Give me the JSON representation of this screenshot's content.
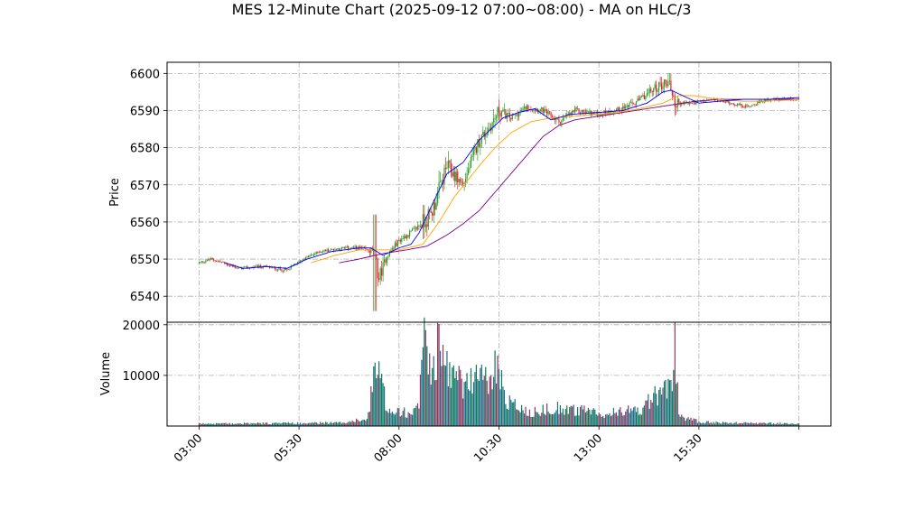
{
  "chart_data": {
    "type": "candlestick",
    "title": "MES 12-Minute Chart (2025-09-12 07:00~08:00) - MA on HLC/3",
    "price_panel": {
      "ylabel": "Price",
      "ylim": [
        6533,
        6603
      ],
      "yticks": [
        6540,
        6550,
        6560,
        6570,
        6580,
        6590,
        6600
      ]
    },
    "volume_panel": {
      "ylabel": "Volume",
      "ylim": [
        0,
        20500
      ],
      "yticks": [
        10000,
        20000
      ],
      "bar_colors": [
        "#1f6f8b",
        "#0b7a57",
        "#8b3a62"
      ]
    },
    "xticks": [
      {
        "label": "03:00",
        "hours": 3.0
      },
      {
        "label": "05:30",
        "hours": 5.5
      },
      {
        "label": "08:00",
        "hours": 8.0
      },
      {
        "label": "10:30",
        "hours": 10.5
      },
      {
        "label": "13:00",
        "hours": 13.0
      },
      {
        "label": "15:30",
        "hours": 15.5
      }
    ],
    "xlim_hours": [
      2.2,
      18.8
    ],
    "grid": true,
    "colors": {
      "up": "#2ca02c",
      "down": "#d62728",
      "ma_fast": "#0000ff",
      "ma_mid": "#ffa500",
      "ma_slow": "#800080"
    },
    "price_anchors": [
      [
        3.0,
        6549
      ],
      [
        3.3,
        6550
      ],
      [
        3.6,
        6549
      ],
      [
        4.0,
        6547.5
      ],
      [
        4.6,
        6548
      ],
      [
        5.2,
        6547
      ],
      [
        5.6,
        6550
      ],
      [
        6.0,
        6552
      ],
      [
        6.6,
        6553
      ],
      [
        7.0,
        6553
      ],
      [
        7.35,
        6552
      ],
      [
        7.5,
        6545
      ],
      [
        7.7,
        6551
      ],
      [
        8.0,
        6555
      ],
      [
        8.4,
        6558
      ],
      [
        8.8,
        6562
      ],
      [
        9.2,
        6575
      ],
      [
        9.6,
        6570
      ],
      [
        10.0,
        6582
      ],
      [
        10.3,
        6586
      ],
      [
        10.5,
        6590
      ],
      [
        10.8,
        6588
      ],
      [
        11.2,
        6591
      ],
      [
        11.6,
        6590
      ],
      [
        12.0,
        6587
      ],
      [
        12.4,
        6590
      ],
      [
        13.0,
        6589
      ],
      [
        13.4,
        6590
      ],
      [
        13.9,
        6592
      ],
      [
        14.4,
        6596
      ],
      [
        14.75,
        6598
      ],
      [
        14.9,
        6592
      ],
      [
        15.3,
        6592
      ],
      [
        15.9,
        6593
      ],
      [
        16.3,
        6592
      ],
      [
        16.7,
        6591
      ],
      [
        17.2,
        6593
      ],
      [
        17.6,
        6593
      ],
      [
        18.0,
        6593
      ]
    ],
    "volume_anchors": [
      [
        3.0,
        500
      ],
      [
        6.5,
        700
      ],
      [
        7.2,
        1500
      ],
      [
        7.45,
        14000
      ],
      [
        7.7,
        4000
      ],
      [
        8.2,
        3000
      ],
      [
        8.5,
        5000
      ],
      [
        8.6,
        20000
      ],
      [
        8.8,
        13000
      ],
      [
        9.0,
        17000
      ],
      [
        9.3,
        12000
      ],
      [
        9.6,
        9000
      ],
      [
        10.0,
        11000
      ],
      [
        10.3,
        9000
      ],
      [
        10.4,
        13500
      ],
      [
        10.7,
        6000
      ],
      [
        11.2,
        3000
      ],
      [
        12.0,
        4000
      ],
      [
        13.0,
        2800
      ],
      [
        14.0,
        3500
      ],
      [
        14.6,
        8000
      ],
      [
        14.8,
        10000
      ],
      [
        14.9,
        17000
      ],
      [
        15.0,
        2000
      ],
      [
        15.6,
        800
      ],
      [
        18.0,
        500
      ]
    ],
    "ma_fast_anchors": [
      [
        3.65,
        6549
      ],
      [
        4.1,
        6547.5
      ],
      [
        4.7,
        6548
      ],
      [
        5.2,
        6547.5
      ],
      [
        5.7,
        6550
      ],
      [
        6.3,
        6552
      ],
      [
        7.0,
        6553
      ],
      [
        7.3,
        6553
      ],
      [
        7.6,
        6551
      ],
      [
        8.0,
        6553
      ],
      [
        8.3,
        6554
      ],
      [
        8.5,
        6557
      ],
      [
        8.8,
        6564
      ],
      [
        9.2,
        6573
      ],
      [
        9.6,
        6576
      ],
      [
        10.0,
        6582
      ],
      [
        10.3,
        6585
      ],
      [
        10.6,
        6588
      ],
      [
        11.0,
        6589.5
      ],
      [
        11.4,
        6590.5
      ],
      [
        11.8,
        6587.5
      ],
      [
        12.3,
        6589
      ],
      [
        13.0,
        6589.5
      ],
      [
        13.6,
        6590
      ],
      [
        14.2,
        6592
      ],
      [
        14.6,
        6595
      ],
      [
        14.8,
        6595.5
      ],
      [
        15.1,
        6594
      ],
      [
        15.5,
        6592
      ],
      [
        16.0,
        6592.5
      ],
      [
        16.6,
        6593
      ],
      [
        17.2,
        6593
      ],
      [
        18.0,
        6593.5
      ]
    ],
    "ma_mid_anchors": [
      [
        5.8,
        6549
      ],
      [
        6.4,
        6551
      ],
      [
        7.0,
        6552.5
      ],
      [
        7.5,
        6552.5
      ],
      [
        8.0,
        6552.5
      ],
      [
        8.6,
        6554
      ],
      [
        9.0,
        6560
      ],
      [
        9.4,
        6567
      ],
      [
        10.0,
        6575
      ],
      [
        10.4,
        6580
      ],
      [
        10.8,
        6584
      ],
      [
        11.3,
        6587
      ],
      [
        11.8,
        6588
      ],
      [
        12.4,
        6588.5
      ],
      [
        13.0,
        6589
      ],
      [
        13.5,
        6589.5
      ],
      [
        14.0,
        6590.5
      ],
      [
        14.6,
        6592
      ],
      [
        15.0,
        6594
      ],
      [
        15.4,
        6594
      ],
      [
        16.0,
        6593
      ],
      [
        16.6,
        6592.5
      ],
      [
        17.2,
        6592.5
      ],
      [
        18.0,
        6593
      ]
    ],
    "ma_slow_anchors": [
      [
        6.5,
        6549
      ],
      [
        7.0,
        6550
      ],
      [
        7.6,
        6551.5
      ],
      [
        8.2,
        6552.5
      ],
      [
        8.7,
        6553.5
      ],
      [
        9.2,
        6556.5
      ],
      [
        9.6,
        6559.5
      ],
      [
        10.0,
        6563
      ],
      [
        10.4,
        6568
      ],
      [
        10.8,
        6573
      ],
      [
        11.2,
        6578
      ],
      [
        11.6,
        6583
      ],
      [
        12.0,
        6586
      ],
      [
        12.4,
        6587.5
      ],
      [
        13.0,
        6588.5
      ],
      [
        13.6,
        6589.5
      ],
      [
        14.2,
        6590.5
      ],
      [
        14.8,
        6591.5
      ],
      [
        15.4,
        6592.5
      ],
      [
        16.0,
        6593
      ],
      [
        16.6,
        6593
      ],
      [
        17.2,
        6593
      ],
      [
        18.0,
        6593
      ]
    ]
  }
}
